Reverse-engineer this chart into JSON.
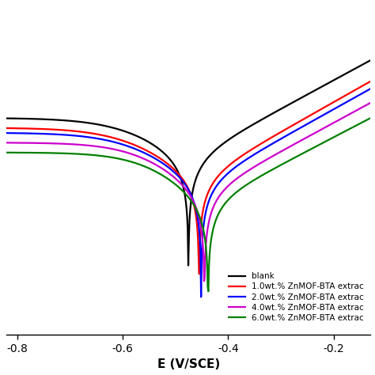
{
  "xlabel": "E (V/SCE)",
  "x_ticks": [
    -0.8,
    -0.6,
    -0.4,
    -0.2
  ],
  "legend_labels": [
    "blank",
    "1.0wt.% ZnMOF-BTA extrac",
    "2.0wt.% ZnMOF-BTA extrac",
    "4.0wt.% ZnMOF-BTA extrac",
    "6.0wt.% ZnMOF-BTA extrac"
  ],
  "colors": [
    "black",
    "red",
    "blue",
    "#cc00cc",
    "#008000"
  ],
  "linewidth": 1.6,
  "figsize": [
    4.74,
    4.74
  ],
  "dpi": 100,
  "xlim": [
    -0.82,
    -0.13
  ],
  "ylim": [
    -8.2,
    -1.5
  ],
  "curves": [
    {
      "Ecorr": -0.47,
      "log_icorr": -4.6,
      "ba": 0.075,
      "bc": 0.06,
      "cat_limit": -3.8,
      "cat_E_limit": -0.65,
      "color": "black",
      "name": "blank"
    },
    {
      "Ecorr": -0.452,
      "log_icorr": -5.0,
      "ba": 0.072,
      "bc": 0.058,
      "cat_limit": -4.0,
      "cat_E_limit": -0.58,
      "color": "red",
      "name": "1.0wt%"
    },
    {
      "Ecorr": -0.448,
      "log_icorr": -5.1,
      "ba": 0.073,
      "bc": 0.057,
      "cat_limit": -4.1,
      "cat_E_limit": -0.57,
      "color": "blue",
      "name": "2.0wt%"
    },
    {
      "Ecorr": -0.442,
      "log_icorr": -5.3,
      "ba": 0.075,
      "bc": 0.052,
      "cat_limit": -4.3,
      "cat_E_limit": -0.56,
      "color": "#cc00cc",
      "name": "4.0wt%"
    },
    {
      "Ecorr": -0.435,
      "log_icorr": -5.5,
      "ba": 0.078,
      "bc": 0.05,
      "cat_limit": -4.5,
      "cat_E_limit": -0.55,
      "color": "#008000",
      "name": "6.0wt%"
    }
  ]
}
